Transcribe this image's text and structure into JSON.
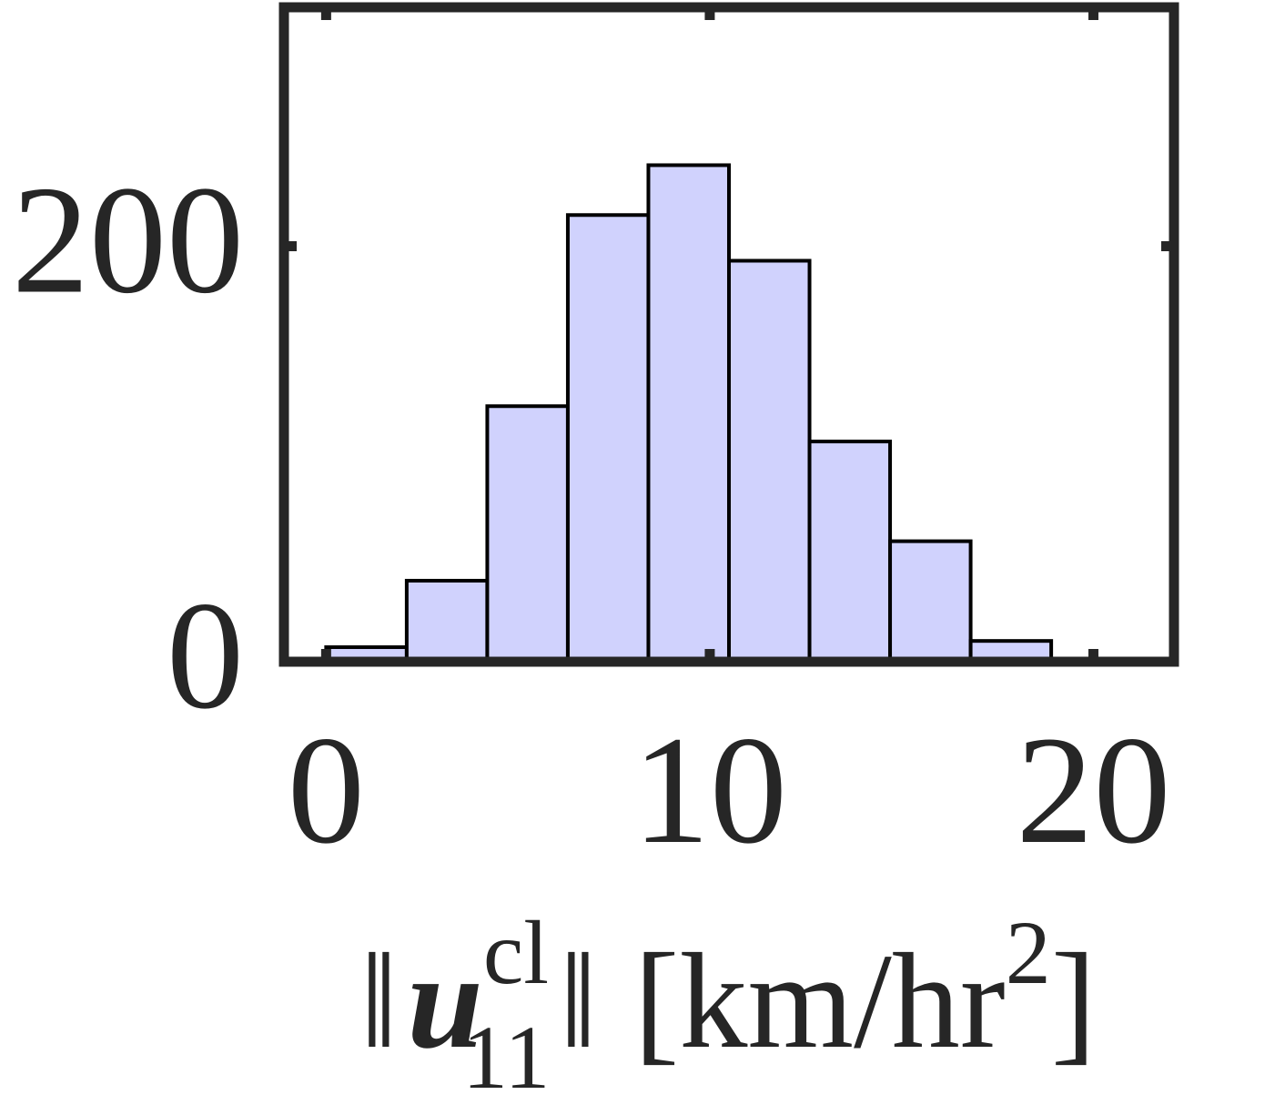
{
  "chart_data": {
    "type": "histogram",
    "bins": [
      0,
      2.1,
      4.2,
      6.3,
      8.4,
      10.5,
      12.6,
      14.7,
      16.8,
      18.9
    ],
    "counts": [
      7,
      39,
      123,
      215,
      239,
      193,
      106,
      58,
      10
    ],
    "color": "#d0d2fd",
    "xlim": [
      -1.1,
      22.1
    ],
    "xticks": [
      0,
      10,
      20
    ],
    "ylim": [
      0,
      315
    ],
    "yticks": [
      0,
      200
    ],
    "x_label": {
      "norm_open": "‖",
      "symbol": "u",
      "superscript": "cl",
      "subscript": "11",
      "norm_close": "‖",
      "unit": "[km/hr",
      "unit_exponent": "2",
      "unit_close": "]"
    }
  }
}
